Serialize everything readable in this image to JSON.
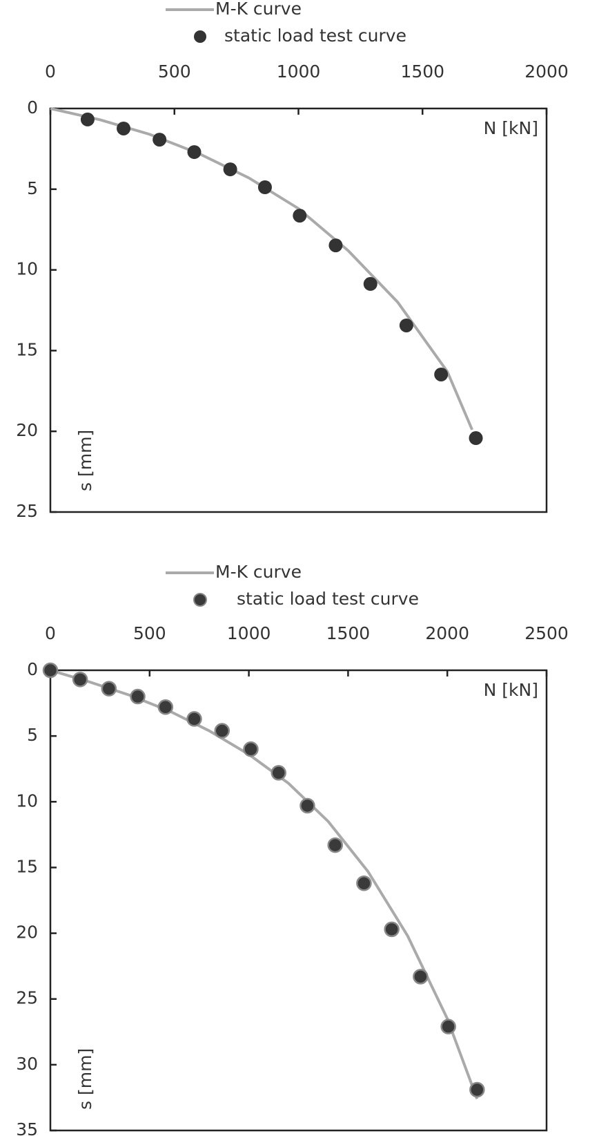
{
  "chart_data": [
    {
      "type": "scatter",
      "xlabel": "N [kN]",
      "ylabel": "s [mm]",
      "xlim": [
        0,
        2000
      ],
      "xticks": [
        0,
        500,
        1000,
        1500,
        2000
      ],
      "ylim": [
        0,
        25
      ],
      "yticks": [
        0,
        5,
        10,
        15,
        20,
        25
      ],
      "y_inverted": true,
      "x_axis_position": "top",
      "legend": "top",
      "series": [
        {
          "name": "M-K curve",
          "type": "line",
          "color": "#aaaaaa",
          "x": [
            0,
            200,
            400,
            600,
            800,
            1000,
            1200,
            1400,
            1600,
            1700
          ],
          "values": [
            0,
            0.7,
            1.6,
            2.8,
            4.3,
            6.2,
            8.8,
            12.0,
            16.3,
            19.9
          ]
        },
        {
          "name": "static load test curve",
          "type": "scatter",
          "color": "#333333",
          "x": [
            150,
            295,
            440,
            580,
            725,
            865,
            1005,
            1150,
            1290,
            1435,
            1575,
            1715
          ],
          "values": [
            0.68,
            1.24,
            1.93,
            2.7,
            3.77,
            4.88,
            6.64,
            8.48,
            10.87,
            13.44,
            16.48,
            20.42
          ]
        }
      ]
    },
    {
      "type": "scatter",
      "xlabel": "N [kN]",
      "ylabel": "s [mm]",
      "xlim": [
        0,
        2500
      ],
      "xticks": [
        0,
        500,
        1000,
        1500,
        2000,
        2500
      ],
      "ylim": [
        0,
        35
      ],
      "yticks": [
        0,
        5,
        10,
        15,
        20,
        25,
        30,
        35
      ],
      "y_inverted": true,
      "x_axis_position": "top",
      "legend": "top",
      "series": [
        {
          "name": "M-K curve",
          "type": "line",
          "color": "#aaaaaa",
          "x": [
            0,
            200,
            400,
            600,
            800,
            1000,
            1200,
            1400,
            1600,
            1800,
            2000,
            2150
          ],
          "values": [
            0,
            0.9,
            1.9,
            3.1,
            4.6,
            6.4,
            8.6,
            11.5,
            15.3,
            20.2,
            26.5,
            32.6
          ]
        },
        {
          "name": "static load test curve",
          "type": "scatter",
          "color": "#3a3a3a",
          "x": [
            0,
            150,
            295,
            440,
            580,
            725,
            865,
            1010,
            1150,
            1295,
            1435,
            1580,
            1720,
            1865,
            2005,
            2150
          ],
          "values": [
            0,
            0.7,
            1.4,
            2.0,
            2.8,
            3.7,
            4.6,
            6.0,
            7.8,
            10.3,
            13.3,
            16.2,
            19.7,
            23.3,
            27.1,
            31.9
          ]
        }
      ]
    }
  ]
}
